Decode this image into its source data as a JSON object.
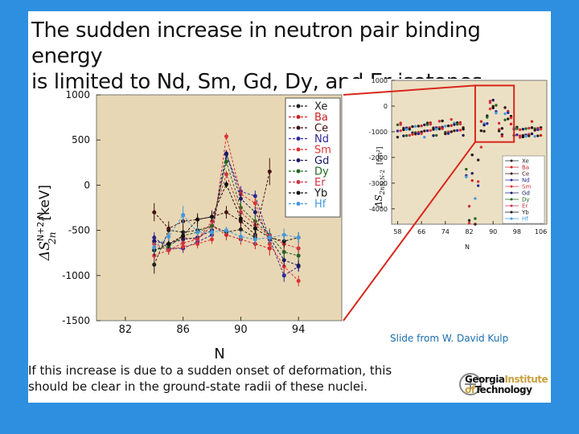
{
  "slide": {
    "title_line1": "The sudden increase in neutron pair binding energy",
    "title_line2": "is limited to Nd, Sm, Gd, Dy, and Er isotopes.",
    "credit": "Slide from W. David Kulp",
    "bottom_line1": "If this increase is due to a sudden onset of deformation, this",
    "bottom_line2": "should be clear in the ground-state radii of these nuclei.",
    "logo_line1a": "Georgia",
    "logo_line1b": "Institute",
    "logo_line2a": "of",
    "logo_line2b": "Technology"
  },
  "colors": {
    "plot_bg": "#e8d7b4",
    "inset_bg": "#ece0c4",
    "highlight": "#d9261c",
    "text": "#111111"
  },
  "chart_data": [
    {
      "type": "line",
      "title": "",
      "xlabel": "N",
      "ylabel_main": "ΔS",
      "ylabel_super": "N+2,N",
      "ylabel_sub": "2n",
      "ylabel_unit": "[keV]",
      "xlim": [
        80,
        97
      ],
      "ylim": [
        -1500,
        1000
      ],
      "xticks": [
        82,
        86,
        90,
        94
      ],
      "yticks": [
        1000,
        500,
        0,
        -500,
        -1000,
        -1500
      ],
      "x": [
        84,
        85,
        86,
        87,
        88,
        89,
        90,
        91,
        92,
        93,
        94
      ],
      "series": [
        {
          "name": "Xe",
          "color": "#222222",
          "values": [
            -880,
            -500,
            -520,
            -500,
            -450,
            -520,
            -490,
            -580,
            null,
            null,
            null
          ],
          "errors": [
            100,
            60,
            60,
            60,
            60,
            60,
            60,
            70,
            null,
            null,
            null
          ]
        },
        {
          "name": "Ba",
          "color": "#cc2222",
          "values": [
            -620,
            -650,
            -580,
            -600,
            -450,
            -550,
            -600,
            -650,
            -700,
            null,
            null
          ],
          "errors": [
            70,
            60,
            60,
            60,
            60,
            60,
            60,
            60,
            80,
            null,
            null
          ]
        },
        {
          "name": "Ce",
          "color": "#441111",
          "values": [
            -300,
            -480,
            -400,
            -380,
            -350,
            -300,
            -400,
            -550,
            150,
            null,
            null
          ],
          "errors": [
            100,
            80,
            70,
            70,
            70,
            70,
            90,
            100,
            150,
            null,
            null
          ]
        },
        {
          "name": "Nd",
          "color": "#2a2a99",
          "values": [
            -580,
            -700,
            -700,
            -630,
            -550,
            340,
            -70,
            -120,
            -600,
            -1000,
            -900
          ],
          "errors": [
            60,
            50,
            50,
            50,
            50,
            40,
            60,
            60,
            70,
            70,
            60
          ]
        },
        {
          "name": "Sm",
          "color": "#dd3333",
          "values": [
            -650,
            -720,
            -680,
            -650,
            -600,
            540,
            -100,
            -200,
            -650,
            -900,
            -1060
          ],
          "errors": [
            60,
            50,
            50,
            50,
            50,
            40,
            60,
            60,
            70,
            70,
            60
          ]
        },
        {
          "name": "Gd",
          "color": "#1a1a66",
          "values": [
            -620,
            -650,
            -600,
            -580,
            -500,
            350,
            -150,
            -300,
            -580,
            -830,
            -890
          ],
          "errors": [
            60,
            50,
            50,
            50,
            50,
            40,
            60,
            60,
            70,
            70,
            60
          ]
        },
        {
          "name": "Dy",
          "color": "#226622",
          "values": [
            -720,
            -680,
            -560,
            -520,
            -450,
            260,
            -250,
            -400,
            -550,
            -740,
            -780
          ],
          "errors": [
            60,
            50,
            50,
            50,
            50,
            40,
            60,
            60,
            70,
            70,
            60
          ]
        },
        {
          "name": "Er",
          "color": "#cc3344",
          "values": [
            -780,
            -720,
            -640,
            -600,
            -400,
            120,
            -300,
            -440,
            -560,
            -650,
            -700
          ],
          "errors": [
            60,
            50,
            50,
            50,
            50,
            40,
            60,
            60,
            70,
            70,
            60
          ]
        },
        {
          "name": "Yb",
          "color": "#111111",
          "values": [
            -720,
            -650,
            -560,
            -380,
            -350,
            10,
            -370,
            -480,
            -580,
            -620,
            -580
          ],
          "errors": [
            60,
            50,
            50,
            50,
            50,
            40,
            60,
            60,
            70,
            70,
            60
          ]
        },
        {
          "name": "Hf",
          "color": "#4499dd",
          "values": [
            -690,
            -570,
            -330,
            -520,
            -520,
            -500,
            -570,
            -600,
            -580,
            -550,
            -580
          ],
          "errors": [
            60,
            50,
            100,
            50,
            50,
            40,
            60,
            60,
            70,
            70,
            60
          ]
        }
      ]
    },
    {
      "type": "scatter",
      "title": "",
      "xlabel": "N",
      "ylabel_main": "ΔS",
      "ylabel_sub": "2n",
      "ylabel_super_text": "N,N-2",
      "ylabel_unit": "[fm²]",
      "xlim": [
        56,
        108
      ],
      "ylim": [
        -4600,
        1000
      ],
      "xticks": [
        58,
        66,
        74,
        82,
        90,
        98,
        106
      ],
      "xtick_labels": [
        "58",
        "66",
        "74",
        "82",
        "90",
        "98",
        "106"
      ],
      "yticks": [
        1000,
        0,
        -1000,
        -2000,
        -3000,
        -4000
      ],
      "yticks_shown": [
        "1000",
        "0",
        "-1000",
        "-2000",
        "-3000",
        "-4000"
      ],
      "legend": [
        "Xe",
        "Ba",
        "Ce",
        "Nd",
        "Sm",
        "Gd",
        "Dy",
        "Er",
        "Yb",
        "Hf"
      ],
      "highlight_box": {
        "x_from": 84,
        "x_to": 97,
        "y_from": -1400,
        "y_to": 800
      }
    }
  ]
}
